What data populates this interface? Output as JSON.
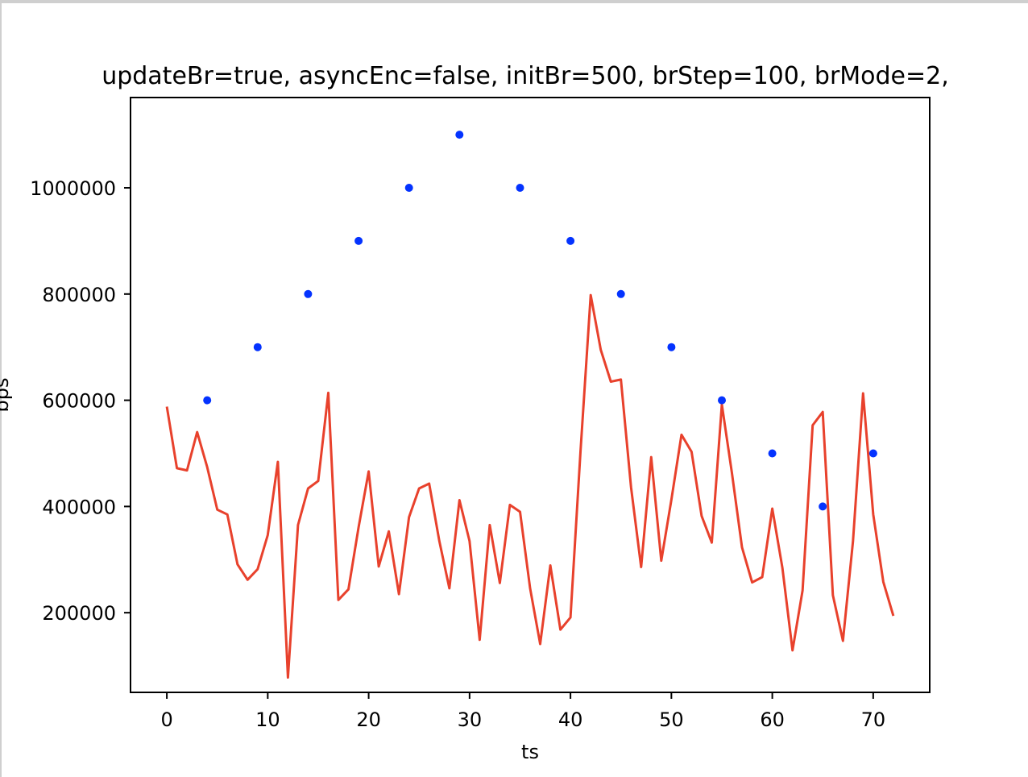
{
  "chart_data": {
    "type": "line",
    "title": "updateBr=true, asyncEnc=false, initBr=500, brStep=100, brMode=2,",
    "xlabel": "ts",
    "ylabel": "bps",
    "xlim": [
      -3.6,
      75.6
    ],
    "ylim": [
      50000,
      1170000
    ],
    "xticks": [
      0,
      10,
      20,
      30,
      40,
      50,
      60,
      70
    ],
    "yticks": [
      200000,
      400000,
      600000,
      800000,
      1000000
    ],
    "grid": false,
    "series": [
      {
        "style": "line",
        "color": "#e8412c",
        "x": [
          0,
          1,
          2,
          3,
          4,
          5,
          6,
          7,
          8,
          9,
          10,
          11,
          12,
          13,
          14,
          15,
          16,
          17,
          18,
          19,
          20,
          21,
          22,
          23,
          24,
          25,
          26,
          27,
          28,
          29,
          30,
          31,
          32,
          33,
          34,
          35,
          36,
          37,
          38,
          39,
          40,
          41,
          42,
          43,
          44,
          45,
          46,
          47,
          48,
          49,
          50,
          51,
          52,
          53,
          54,
          55,
          56,
          57,
          58,
          59,
          60,
          61,
          62,
          63,
          64,
          65,
          66,
          67,
          68,
          69,
          70,
          71,
          72
        ],
        "values": [
          588000,
          472000,
          468000,
          540000,
          474000,
          394000,
          385000,
          291000,
          262000,
          282000,
          346000,
          484000,
          78000,
          365000,
          434000,
          448000,
          614000,
          224000,
          244000,
          361000,
          466000,
          287000,
          353000,
          235000,
          380000,
          434000,
          443000,
          335000,
          246000,
          412000,
          335000,
          149000,
          365000,
          256000,
          403000,
          390000,
          246000,
          141000,
          289000,
          168000,
          191000,
          505000,
          798000,
          695000,
          635000,
          639000,
          436000,
          286000,
          493000,
          298000,
          413000,
          535000,
          503000,
          382000,
          332000,
          592000,
          463000,
          323000,
          257000,
          267000,
          396000,
          285000,
          129000,
          242000,
          553000,
          578000,
          233000,
          147000,
          335000,
          613000,
          385000,
          258000,
          194000
        ]
      },
      {
        "style": "dots",
        "color": "#0433ff",
        "x": [
          4,
          9,
          14,
          19,
          24,
          29,
          35,
          40,
          45,
          50,
          55,
          60,
          65,
          70
        ],
        "values": [
          600000,
          700000,
          800000,
          900000,
          1000000,
          1100000,
          1000000,
          900000,
          800000,
          700000,
          600000,
          500000,
          400000,
          500000
        ]
      }
    ]
  }
}
